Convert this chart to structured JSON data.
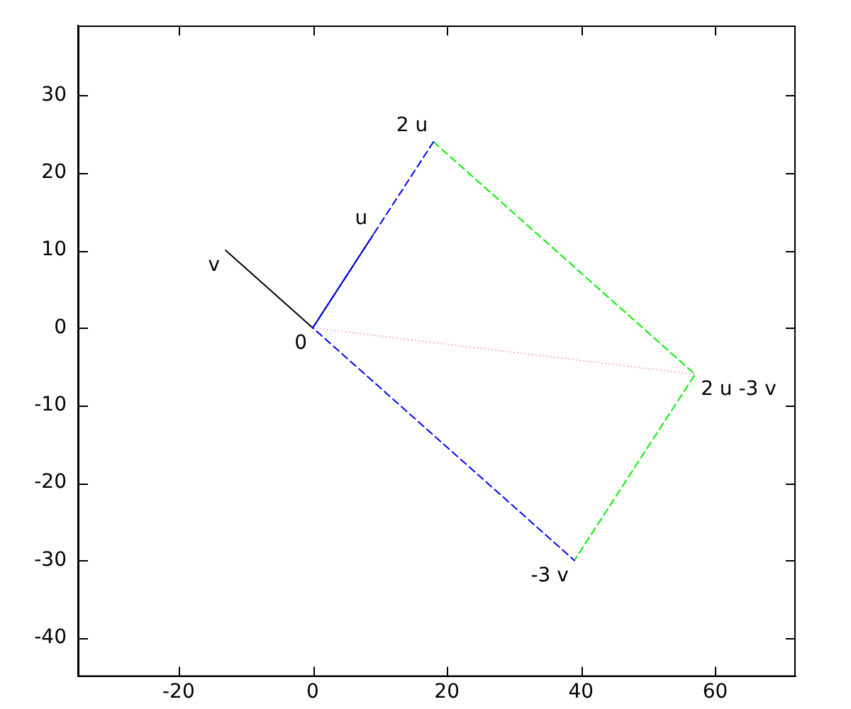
{
  "chart_data": {
    "type": "line",
    "xlim": [
      -35,
      72
    ],
    "ylim": [
      -45,
      39
    ],
    "xticks": [
      -20,
      0,
      20,
      40,
      60
    ],
    "yticks": [
      -40,
      -30,
      -20,
      -10,
      0,
      10,
      20,
      30
    ],
    "grid": false,
    "legend": false,
    "series": [
      {
        "color": "#0000ff",
        "line_style": "dashed",
        "x": [
          18,
          0,
          39
        ],
        "values": [
          24,
          0,
          -30
        ]
      },
      {
        "color": "#000080",
        "line_style": "solid",
        "x": [
          0,
          9
        ],
        "values": [
          0,
          12
        ]
      },
      {
        "color": "#000000",
        "line_style": "solid",
        "x": [
          0,
          -13
        ],
        "values": [
          0,
          10
        ]
      },
      {
        "color": "#00ee00",
        "line_style": "dashed",
        "x": [
          18,
          57,
          39
        ],
        "values": [
          24,
          -6,
          -30
        ]
      },
      {
        "color": "#ffaacc",
        "line_style": "dotted",
        "x": [
          0,
          57
        ],
        "values": [
          0,
          -6
        ]
      }
    ],
    "annotations": [
      {
        "text": "0",
        "x": 0,
        "y": 0
      },
      {
        "text": "u",
        "x": 9,
        "y": 12
      },
      {
        "text": "v",
        "x": -13,
        "y": 10
      },
      {
        "text": "2 u",
        "x": 18,
        "y": 24
      },
      {
        "text": "-3 v",
        "x": 39,
        "y": -30
      },
      {
        "text": "2 u -3 v",
        "x": 57,
        "y": -6
      }
    ]
  }
}
